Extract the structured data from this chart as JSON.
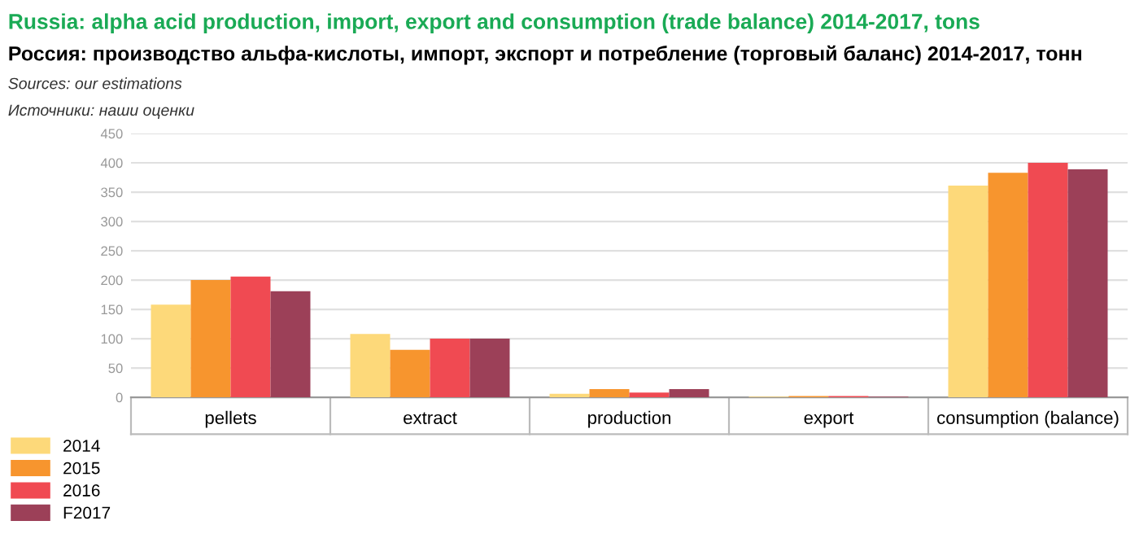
{
  "chart_data": {
    "type": "bar",
    "title": "Russia: alpha acid production, import, export and consumption (trade balance) 2014-2017, tons",
    "subtitle": "Россия: производство альфа-кислоты, импорт, экспорт и потребление (торговый баланс) 2014-2017, тонн",
    "annotations": [
      "Sources: our estimations",
      "Источники: наши оценки"
    ],
    "categories": [
      "pellets",
      "extract",
      "production",
      "export",
      "consumption (balance)"
    ],
    "series": [
      {
        "name": "2014",
        "color": "#fdd97a",
        "values": [
          158,
          108,
          6,
          1,
          361
        ]
      },
      {
        "name": "2015",
        "color": "#f7952e",
        "values": [
          200,
          81,
          14,
          2,
          383
        ]
      },
      {
        "name": "2016",
        "color": "#f04a52",
        "values": [
          206,
          100,
          8,
          2,
          400
        ]
      },
      {
        "name": "F2017",
        "color": "#9c4058",
        "values": [
          181,
          100,
          14,
          1,
          389
        ]
      }
    ],
    "ylim": [
      0,
      450
    ],
    "yticks": [
      0,
      50,
      100,
      150,
      200,
      250,
      300,
      350,
      400,
      450
    ],
    "grid": "y",
    "legend": "bottom left"
  }
}
